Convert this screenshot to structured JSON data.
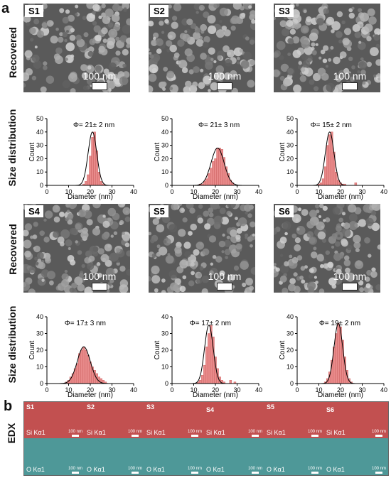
{
  "figure": {
    "panel_a": "a",
    "panel_b": "b",
    "row_labels": {
      "recovered": "Recovered",
      "size_distribution": "Size distribution",
      "edx": "EDX"
    },
    "scale_text": "100 nm",
    "edx_scale_text": "100 nm",
    "edx_si_label": "Si Kα1",
    "edx_o_label": "O Kα1",
    "edx_samples": [
      "S1",
      "S2",
      "S3",
      "S4",
      "S5",
      "S6"
    ],
    "colors": {
      "bar": "#e88a8a",
      "fit": "#000000",
      "edx_si": "#c25050",
      "edx_o": "#4e9898",
      "sem": "#6b6b6b"
    }
  },
  "samples": [
    {
      "name": "S1",
      "phi_label": "Φ= 21± 2 nm"
    },
    {
      "name": "S2",
      "phi_label": "Φ= 21± 3 nm"
    },
    {
      "name": "S3",
      "phi_label": "Φ= 15± 2 nm"
    },
    {
      "name": "S4",
      "phi_label": "Φ= 17± 3 nm"
    },
    {
      "name": "S5",
      "phi_label": "Φ= 17± 2 nm"
    },
    {
      "name": "S6",
      "phi_label": "Φ= 19± 2 nm"
    }
  ],
  "chart_data": [
    {
      "type": "bar",
      "sample": "S1",
      "title": "Φ= 21± 2 nm",
      "xlabel": "Diameter (nm)",
      "ylabel": "Count",
      "xlim": [
        0,
        40
      ],
      "ylim": [
        0,
        50
      ],
      "xticks": [
        0,
        10,
        20,
        30,
        40
      ],
      "yticks": [
        0,
        10,
        20,
        30,
        40,
        50
      ],
      "bin_width": 1,
      "fit": {
        "mean": 21,
        "sd": 2
      },
      "x": [
        17,
        18,
        19,
        20,
        21,
        22,
        23,
        24,
        25,
        26
      ],
      "values": [
        1,
        3,
        8,
        22,
        36,
        40,
        26,
        10,
        3,
        1
      ]
    },
    {
      "type": "bar",
      "sample": "S2",
      "title": "Φ= 21± 3 nm",
      "xlabel": "Diameter (nm)",
      "ylabel": "Count",
      "xlim": [
        0,
        40
      ],
      "ylim": [
        0,
        50
      ],
      "xticks": [
        0,
        10,
        20,
        30,
        40
      ],
      "yticks": [
        0,
        10,
        20,
        30,
        40,
        50
      ],
      "bin_width": 1,
      "fit": {
        "mean": 21,
        "sd": 3
      },
      "x": [
        13,
        14,
        15,
        16,
        17,
        18,
        19,
        20,
        21,
        22,
        23,
        24,
        25,
        26,
        27,
        28
      ],
      "values": [
        1,
        1,
        3,
        5,
        9,
        13,
        18,
        20,
        28,
        28,
        27,
        21,
        14,
        9,
        4,
        2
      ]
    },
    {
      "type": "bar",
      "sample": "S3",
      "title": "Φ= 15± 2 nm",
      "xlabel": "Diameter (nm)",
      "ylabel": "Count",
      "xlim": [
        0,
        40
      ],
      "ylim": [
        0,
        50
      ],
      "xticks": [
        0,
        10,
        20,
        30,
        40
      ],
      "yticks": [
        0,
        10,
        20,
        30,
        40,
        50
      ],
      "bin_width": 1,
      "fit": {
        "mean": 15,
        "sd": 2
      },
      "x": [
        10,
        11,
        12,
        13,
        14,
        15,
        16,
        17,
        18,
        19,
        20,
        21,
        22,
        27
      ],
      "values": [
        1,
        2,
        5,
        14,
        30,
        38,
        40,
        25,
        10,
        4,
        2,
        1,
        1,
        2
      ]
    },
    {
      "type": "bar",
      "sample": "S4",
      "title": "Φ= 17± 3 nm",
      "xlabel": "Diameter (nm)",
      "ylabel": "Count",
      "xlim": [
        0,
        40
      ],
      "ylim": [
        0,
        40
      ],
      "xticks": [
        0,
        10,
        20,
        30,
        40
      ],
      "yticks": [
        0,
        10,
        20,
        30,
        40
      ],
      "bin_width": 1,
      "fit": {
        "mean": 17,
        "sd": 3
      },
      "x": [
        9,
        10,
        11,
        12,
        13,
        14,
        15,
        16,
        17,
        18,
        19,
        20,
        21,
        22,
        23,
        24,
        25,
        26,
        27
      ],
      "values": [
        1,
        2,
        4,
        6,
        9,
        12,
        18,
        20,
        22,
        20,
        17,
        13,
        10,
        8,
        6,
        4,
        3,
        2,
        1
      ]
    },
    {
      "type": "bar",
      "sample": "S5",
      "title": "Φ= 17± 2 nm",
      "xlabel": "Diameter (nm)",
      "ylabel": "Count",
      "xlim": [
        0,
        40
      ],
      "ylim": [
        0,
        40
      ],
      "xticks": [
        0,
        10,
        20,
        30,
        40
      ],
      "yticks": [
        0,
        10,
        20,
        30,
        40
      ],
      "bin_width": 1,
      "fit": {
        "mean": 17,
        "sd": 2
      },
      "x": [
        12,
        13,
        14,
        15,
        16,
        17,
        18,
        19,
        20,
        21,
        22,
        23,
        24,
        27,
        29
      ],
      "values": [
        1,
        2,
        5,
        11,
        22,
        30,
        35,
        28,
        16,
        9,
        4,
        2,
        1,
        2,
        1
      ]
    },
    {
      "type": "bar",
      "sample": "S6",
      "title": "Φ= 19± 2 nm",
      "xlabel": "Diameter (nm)",
      "ylabel": "Count",
      "xlim": [
        0,
        40
      ],
      "ylim": [
        0,
        40
      ],
      "xticks": [
        0,
        10,
        20,
        30,
        40
      ],
      "yticks": [
        0,
        10,
        20,
        30,
        40
      ],
      "bin_width": 1,
      "fit": {
        "mean": 19,
        "sd": 2
      },
      "x": [
        13,
        14,
        15,
        16,
        17,
        18,
        19,
        20,
        21,
        22,
        23,
        24,
        25
      ],
      "values": [
        1,
        3,
        7,
        14,
        22,
        30,
        36,
        34,
        26,
        16,
        8,
        3,
        1
      ]
    }
  ]
}
